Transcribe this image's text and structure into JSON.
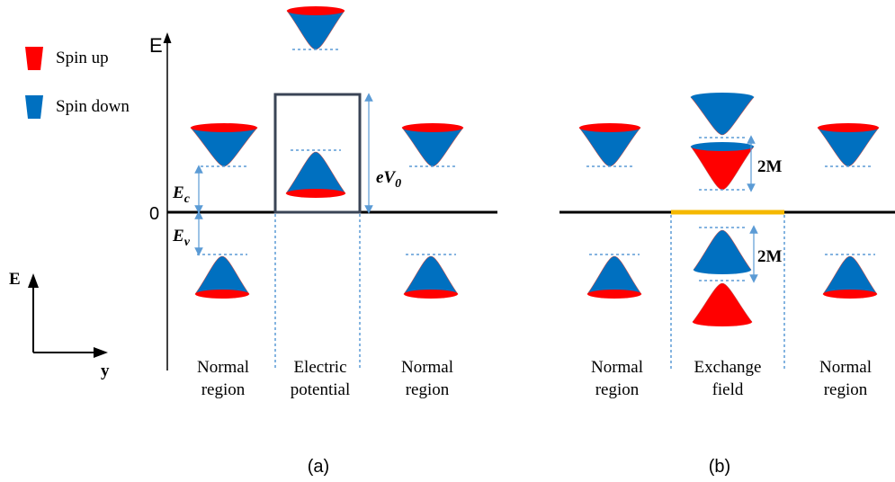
{
  "legend": {
    "items": [
      {
        "label": "Spin up",
        "color": "#ff0000"
      },
      {
        "label": "Spin down",
        "color": "#0070c0"
      }
    ]
  },
  "panel_a": {
    "axis_label": "E",
    "zero_label": "0",
    "ec": {
      "main": "E",
      "sub": "c"
    },
    "ev": {
      "main": "E",
      "sub": "v"
    },
    "ev0": {
      "main": "eV",
      "sub": "0"
    },
    "regions": [
      [
        "Normal",
        "region"
      ],
      [
        "Electric",
        "potential"
      ],
      [
        "Normal",
        "region"
      ]
    ],
    "caption": "(a)"
  },
  "panel_b": {
    "gap_labels": [
      "2M",
      "2M"
    ],
    "regions": [
      [
        "Normal",
        "region"
      ],
      [
        "Exchange",
        "field"
      ],
      [
        "Normal",
        "region"
      ]
    ],
    "caption": "(b)"
  },
  "small_axes": {
    "y_label": "E",
    "x_label": "y"
  }
}
